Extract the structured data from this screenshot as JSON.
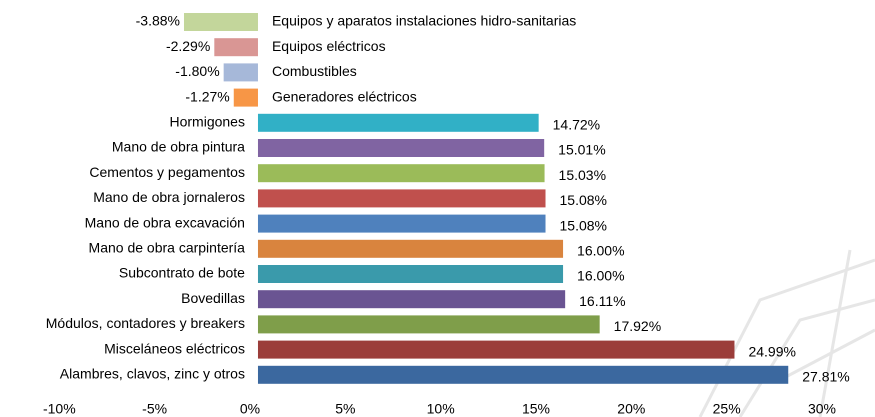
{
  "chart_data": {
    "type": "bar",
    "orientation": "horizontal",
    "categories": [
      "Equipos y aparatos instalaciones hidro-sanitarias",
      "Equipos eléctricos",
      "Combustibles",
      "Generadores eléctricos",
      "Hormigones",
      "Mano de obra pintura",
      "Cementos y pegamentos",
      "Mano de obra jornaleros",
      "Mano de obra excavación",
      "Mano de obra carpintería",
      "Subcontrato de bote",
      "Bovedillas",
      "Módulos, contadores y breakers",
      "Misceláneos eléctricos",
      "Alambres, clavos, zinc y otros"
    ],
    "values": [
      -3.88,
      -2.29,
      -1.8,
      -1.27,
      14.72,
      15.01,
      15.03,
      15.08,
      15.08,
      16.0,
      16.0,
      16.11,
      17.92,
      24.99,
      27.81
    ],
    "value_labels": [
      "-3.88%",
      "-2.29%",
      "-1.80%",
      "-1.27%",
      "14.72%",
      "15.01%",
      "15.03%",
      "15.08%",
      "15.08%",
      "16.00%",
      "16.00%",
      "16.11%",
      "17.92%",
      "24.99%",
      "27.81%"
    ],
    "colors": [
      "#c3d69b",
      "#d99694",
      "#a6b8d9",
      "#f79646",
      "#31b0c6",
      "#8064a2",
      "#9bbb59",
      "#c0504d",
      "#4f81bd",
      "#d9843e",
      "#3a9aab",
      "#6a5492",
      "#7f9e4a",
      "#9b3d3a",
      "#3b689f"
    ],
    "xlim": [
      -10,
      30
    ],
    "xticks": [
      {
        "value": -10,
        "label": "-10%"
      },
      {
        "value": -5,
        "label": "-5%"
      },
      {
        "value": 0,
        "label": "0%"
      },
      {
        "value": 5,
        "label": "5%"
      },
      {
        "value": 10,
        "label": "10%"
      },
      {
        "value": 15,
        "label": "15%"
      },
      {
        "value": 20,
        "label": "20%"
      },
      {
        "value": 25,
        "label": "25%"
      },
      {
        "value": 30,
        "label": "30%"
      }
    ]
  }
}
